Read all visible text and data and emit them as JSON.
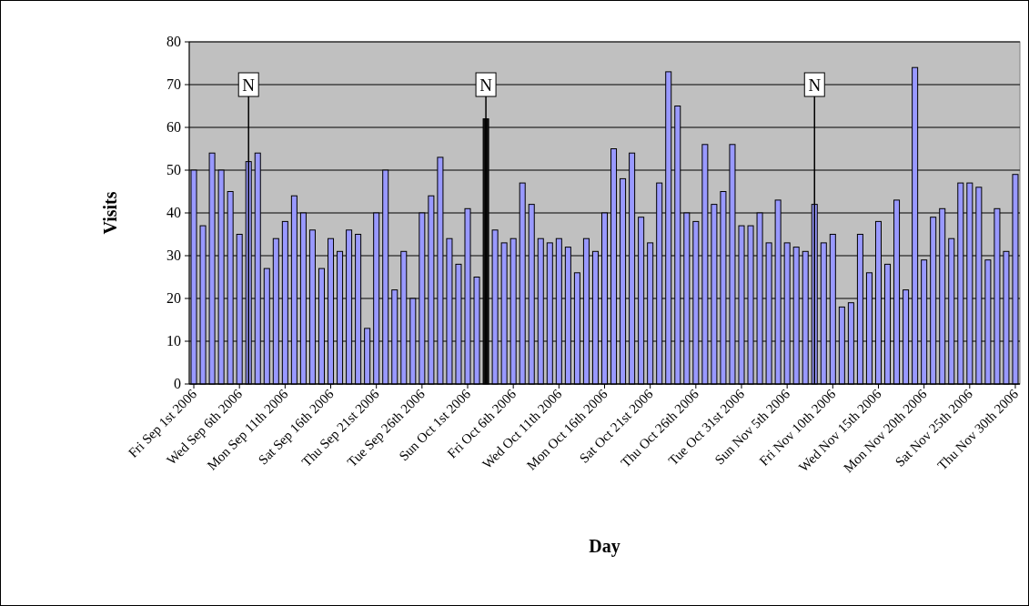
{
  "chart_data": {
    "type": "bar",
    "xlabel": "Day",
    "ylabel": "Visits",
    "x": [
      "2006-09-01",
      "2006-09-02",
      "2006-09-03",
      "2006-09-04",
      "2006-09-05",
      "2006-09-06",
      "2006-09-07",
      "2006-09-08",
      "2006-09-09",
      "2006-09-10",
      "2006-09-11",
      "2006-09-12",
      "2006-09-13",
      "2006-09-14",
      "2006-09-15",
      "2006-09-16",
      "2006-09-17",
      "2006-09-18",
      "2006-09-19",
      "2006-09-20",
      "2006-09-21",
      "2006-09-22",
      "2006-09-23",
      "2006-09-24",
      "2006-09-25",
      "2006-09-26",
      "2006-09-27",
      "2006-09-28",
      "2006-09-29",
      "2006-09-30",
      "2006-10-01",
      "2006-10-02",
      "2006-10-03",
      "2006-10-04",
      "2006-10-05",
      "2006-10-06",
      "2006-10-07",
      "2006-10-08",
      "2006-10-09",
      "2006-10-10",
      "2006-10-11",
      "2006-10-12",
      "2006-10-13",
      "2006-10-14",
      "2006-10-15",
      "2006-10-16",
      "2006-10-17",
      "2006-10-18",
      "2006-10-19",
      "2006-10-20",
      "2006-10-21",
      "2006-10-22",
      "2006-10-23",
      "2006-10-24",
      "2006-10-25",
      "2006-10-26",
      "2006-10-27",
      "2006-10-28",
      "2006-10-29",
      "2006-10-30",
      "2006-10-31",
      "2006-11-01",
      "2006-11-02",
      "2006-11-03",
      "2006-11-04",
      "2006-11-05",
      "2006-11-06",
      "2006-11-07",
      "2006-11-08",
      "2006-11-09",
      "2006-11-10",
      "2006-11-11",
      "2006-11-12",
      "2006-11-13",
      "2006-11-14",
      "2006-11-15",
      "2006-11-16",
      "2006-11-17",
      "2006-11-18",
      "2006-11-19",
      "2006-11-20",
      "2006-11-21",
      "2006-11-22",
      "2006-11-23",
      "2006-11-24",
      "2006-11-25",
      "2006-11-26",
      "2006-11-27",
      "2006-11-28",
      "2006-11-29",
      "2006-11-30"
    ],
    "values": [
      50,
      37,
      54,
      50,
      45,
      35,
      52,
      54,
      27,
      34,
      38,
      44,
      40,
      36,
      27,
      34,
      31,
      36,
      35,
      13,
      40,
      50,
      22,
      31,
      20,
      40,
      44,
      53,
      34,
      28,
      41,
      25,
      62,
      36,
      33,
      34,
      47,
      42,
      34,
      33,
      34,
      32,
      26,
      34,
      31,
      40,
      55,
      48,
      54,
      39,
      33,
      47,
      73,
      65,
      40,
      38,
      56,
      42,
      45,
      56,
      37,
      37,
      40,
      33,
      43,
      33,
      32,
      31,
      42,
      33,
      35,
      18,
      19,
      35,
      26,
      38,
      28,
      43,
      22,
      74,
      29,
      39,
      41,
      34,
      47,
      47,
      46,
      29,
      41,
      31,
      49
    ],
    "colors": [
      "#9999ff",
      "#9999ff",
      "#9999ff",
      "#9999ff",
      "#9999ff",
      "#9999ff",
      "#9999ff",
      "#9999ff",
      "#9999ff",
      "#9999ff",
      "#9999ff",
      "#9999ff",
      "#9999ff",
      "#9999ff",
      "#9999ff",
      "#9999ff",
      "#9999ff",
      "#9999ff",
      "#9999ff",
      "#9999ff",
      "#9999ff",
      "#9999ff",
      "#9999ff",
      "#9999ff",
      "#9999ff",
      "#9999ff",
      "#9999ff",
      "#9999ff",
      "#9999ff",
      "#9999ff",
      "#9999ff",
      "#9999ff",
      "#111111",
      "#9999ff",
      "#9999ff",
      "#9999ff",
      "#9999ff",
      "#9999ff",
      "#9999ff",
      "#9999ff",
      "#9999ff",
      "#9999ff",
      "#9999ff",
      "#9999ff",
      "#9999ff",
      "#9999ff",
      "#9999ff",
      "#9999ff",
      "#9999ff",
      "#9999ff",
      "#9999ff",
      "#9999ff",
      "#9999ff",
      "#9999ff",
      "#9999ff",
      "#9999ff",
      "#9999ff",
      "#9999ff",
      "#9999ff",
      "#9999ff",
      "#9999ff",
      "#9999ff",
      "#9999ff",
      "#9999ff",
      "#9999ff",
      "#9999ff",
      "#9999ff",
      "#9999ff",
      "#9999ff",
      "#9999ff",
      "#9999ff",
      "#9999ff",
      "#9999ff",
      "#9999ff",
      "#9999ff",
      "#9999ff",
      "#9999ff",
      "#9999ff",
      "#9999ff",
      "#9999ff",
      "#9999ff",
      "#9999ff",
      "#9999ff",
      "#9999ff",
      "#9999ff",
      "#9999ff",
      "#9999ff",
      "#9999ff",
      "#9999ff",
      "#9999ff",
      "#9999ff"
    ],
    "xlim": [
      "2006-08-31T12:00",
      "2006-11-30T12:00"
    ],
    "xticks": [
      {
        "value": "2006-09-01",
        "label": "Fri Sep 1st 2006"
      },
      {
        "value": "2006-09-06",
        "label": "Wed Sep 6th 2006"
      },
      {
        "value": "2006-09-11",
        "label": "Mon Sep 11th 2006"
      },
      {
        "value": "2006-09-16",
        "label": "Sat Sep 16th 2006"
      },
      {
        "value": "2006-09-21",
        "label": "Thu Sep 21st 2006"
      },
      {
        "value": "2006-09-26",
        "label": "Tue Sep 26th 2006"
      },
      {
        "value": "2006-10-01",
        "label": "Sun Oct 1st 2006"
      },
      {
        "value": "2006-10-06",
        "label": "Fri Oct 6th 2006"
      },
      {
        "value": "2006-10-11",
        "label": "Wed Oct 11th 2006"
      },
      {
        "value": "2006-10-16",
        "label": "Mon Oct 16th 2006"
      },
      {
        "value": "2006-10-21",
        "label": "Sat Oct 21st 2006"
      },
      {
        "value": "2006-10-26",
        "label": "Thu Oct 26th 2006"
      },
      {
        "value": "2006-10-31",
        "label": "Tue Oct 31st 2006"
      },
      {
        "value": "2006-11-05",
        "label": "Sun Nov 5th 2006"
      },
      {
        "value": "2006-11-10",
        "label": "Fri Nov 10th 2006"
      },
      {
        "value": "2006-11-15",
        "label": "Wed Nov 15th 2006"
      },
      {
        "value": "2006-11-20",
        "label": "Mon Nov 20th 2006"
      },
      {
        "value": "2006-11-25",
        "label": "Sat Nov 25th 2006"
      },
      {
        "value": "2006-11-30",
        "label": "Thu Nov 30th 2006"
      }
    ],
    "ylim": [
      0,
      80
    ],
    "yticks": [
      0,
      10,
      20,
      30,
      40,
      50,
      60,
      70,
      80
    ],
    "grid": "y",
    "annotations": [
      {
        "text": "N",
        "x": "2006-09-07",
        "y": 70
      },
      {
        "text": "N",
        "x": "2006-10-03",
        "y": 70
      },
      {
        "text": "N",
        "x": "2006-11-08",
        "y": 70
      }
    ]
  }
}
